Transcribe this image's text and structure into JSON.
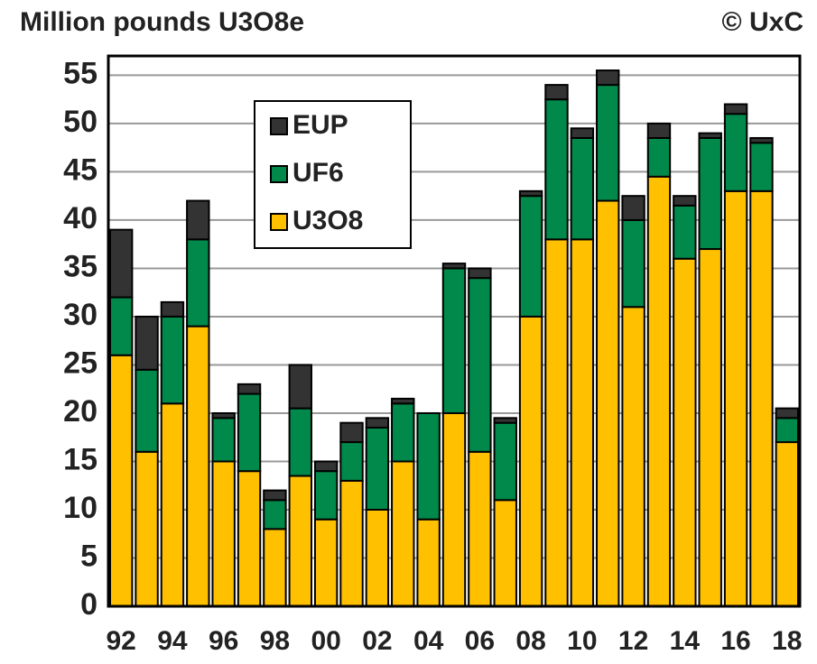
{
  "chart_data": {
    "type": "stacked_bar",
    "title": "Million pounds U3O8e",
    "annotation": "© UxC",
    "categories": [
      "92",
      null,
      "94",
      null,
      "96",
      null,
      "98",
      null,
      "00",
      null,
      "02",
      null,
      "04",
      null,
      "06",
      null,
      "08",
      null,
      "10",
      null,
      "12",
      null,
      "14",
      null,
      "16",
      null,
      "18"
    ],
    "series": [
      {
        "name": "U3O8",
        "color": "#ffc000",
        "values": [
          26,
          16,
          21,
          29,
          15,
          14,
          8,
          13.5,
          9,
          13,
          10,
          15,
          9,
          20,
          16,
          11,
          30,
          38,
          38,
          42,
          31,
          44.5,
          36,
          37,
          43,
          43,
          17
        ]
      },
      {
        "name": "UF6",
        "color": "#00894a",
        "values": [
          6,
          8.5,
          9,
          9,
          4.5,
          8,
          3,
          7,
          5,
          4,
          8.5,
          6,
          11,
          15,
          18,
          8,
          12.5,
          14.5,
          10.5,
          12,
          9,
          4,
          5.5,
          11.5,
          8,
          5,
          2.5
        ]
      },
      {
        "name": "EUP",
        "color": "#333333",
        "values": [
          7,
          5.5,
          1.5,
          4,
          0.5,
          1,
          1,
          4.5,
          1,
          2,
          1,
          0.5,
          0,
          0.5,
          1,
          0.5,
          0.5,
          1.5,
          1,
          1.5,
          2.5,
          1.5,
          1,
          0.5,
          1,
          0.5,
          1
        ]
      }
    ],
    "ylim": [
      0,
      57
    ],
    "yticks": [
      0,
      5,
      10,
      15,
      20,
      25,
      30,
      35,
      40,
      45,
      50,
      55
    ],
    "grid": true,
    "legend": "upper center"
  }
}
